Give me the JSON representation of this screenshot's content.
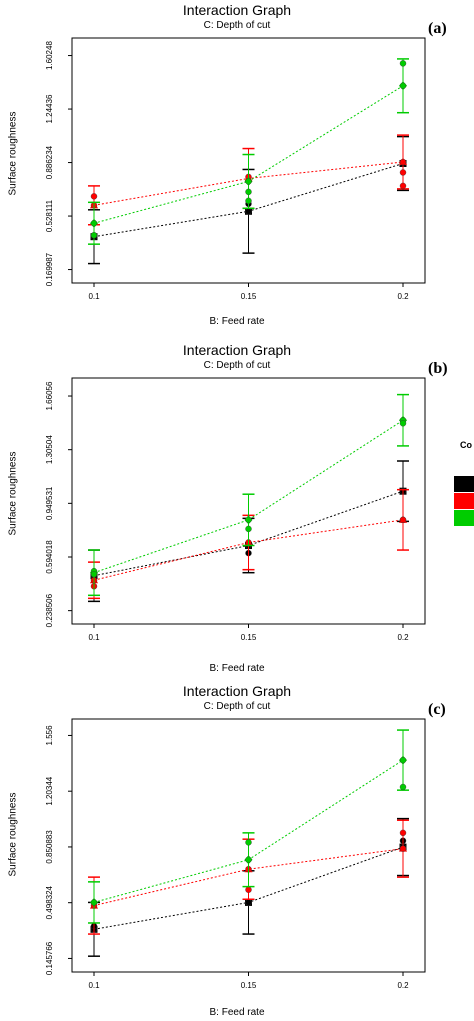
{
  "legend": {
    "title_fragment": "Co",
    "colors": [
      "#000000",
      "#ff0000",
      "#00cc00"
    ]
  },
  "chart_data": [
    {
      "type": "line",
      "title": "Interaction Graph",
      "subtitle": "C: Depth of cut",
      "tag": "(a)",
      "xlabel": "B: Feed rate",
      "ylabel": "Surface roughness",
      "x": [
        0.1,
        0.15,
        0.2
      ],
      "x_tick_labels": [
        "0.1",
        "0.15",
        "0.2"
      ],
      "y_ticks": [
        0.169987,
        0.528111,
        0.886234,
        1.24436,
        1.60248
      ],
      "y_tick_labels": [
        "0.169987",
        "0.528111",
        "0.886234",
        "1.24436",
        "1.60248"
      ],
      "ylim": [
        0.08,
        1.72
      ],
      "series": [
        {
          "color": "#000000",
          "marker": "square",
          "values": [
            0.39,
            0.56,
            0.88
          ],
          "err": [
            0.18,
            0.28,
            0.18
          ],
          "points": [
            [
              0.1,
              0.39
            ],
            [
              0.15,
              0.61
            ],
            [
              0.15,
              0.56
            ],
            [
              0.2,
              0.88
            ]
          ]
        },
        {
          "color": "#ff0000",
          "marker": "triangle",
          "values": [
            0.6,
            0.78,
            0.89
          ],
          "err": [
            0.13,
            0.2,
            0.18
          ],
          "points": [
            [
              0.1,
              0.66
            ],
            [
              0.1,
              0.6
            ],
            [
              0.15,
              0.79
            ],
            [
              0.15,
              0.76
            ],
            [
              0.2,
              0.89
            ],
            [
              0.2,
              0.82
            ],
            [
              0.2,
              0.73
            ]
          ]
        },
        {
          "color": "#00cc00",
          "marker": "diamond",
          "values": [
            0.48,
            0.76,
            1.4
          ],
          "err": [
            0.14,
            0.18,
            0.18
          ],
          "points": [
            [
              0.1,
              0.48
            ],
            [
              0.1,
              0.4
            ],
            [
              0.15,
              0.69
            ],
            [
              0.15,
              0.76
            ],
            [
              0.15,
              0.63
            ],
            [
              0.2,
              1.4
            ],
            [
              0.2,
              1.55
            ]
          ]
        }
      ]
    },
    {
      "type": "line",
      "title": "Interaction Graph",
      "subtitle": "C: Depth of cut",
      "tag": "(b)",
      "xlabel": "B: Feed rate",
      "ylabel": "Surface roughness",
      "x": [
        0.1,
        0.15,
        0.2
      ],
      "x_tick_labels": [
        "0.1",
        "0.15",
        "0.2"
      ],
      "y_ticks": [
        0.238506,
        0.594018,
        0.949531,
        1.30504,
        1.66056
      ],
      "y_tick_labels": [
        "0.238506",
        "0.594018",
        "0.949531",
        "1.30504",
        "1.66056"
      ],
      "ylim": [
        0.15,
        1.78
      ],
      "series": [
        {
          "color": "#000000",
          "marker": "square",
          "values": [
            0.47,
            0.67,
            1.03
          ],
          "err": [
            0.17,
            0.18,
            0.2
          ],
          "points": [
            [
              0.1,
              0.47
            ],
            [
              0.15,
              0.67
            ],
            [
              0.15,
              0.62
            ],
            [
              0.2,
              1.03
            ]
          ]
        },
        {
          "color": "#ff0000",
          "marker": "triangle",
          "values": [
            0.44,
            0.69,
            0.84
          ],
          "err": [
            0.12,
            0.18,
            0.2
          ],
          "points": [
            [
              0.1,
              0.44
            ],
            [
              0.1,
              0.4
            ],
            [
              0.15,
              0.69
            ],
            [
              0.2,
              0.84
            ],
            [
              0.2,
              0.84
            ]
          ]
        },
        {
          "color": "#00cc00",
          "marker": "diamond",
          "values": [
            0.49,
            0.84,
            1.5
          ],
          "err": [
            0.15,
            0.17,
            0.17
          ],
          "points": [
            [
              0.1,
              0.5
            ],
            [
              0.1,
              0.48
            ],
            [
              0.15,
              0.84
            ],
            [
              0.15,
              0.78
            ],
            [
              0.2,
              1.5
            ],
            [
              0.2,
              1.48
            ]
          ]
        }
      ]
    },
    {
      "type": "line",
      "title": "Interaction Graph",
      "subtitle": "C: Depth of cut",
      "tag": "(c)",
      "xlabel": "B: Feed rate",
      "ylabel": "Surface roughness",
      "x": [
        0.1,
        0.15,
        0.2
      ],
      "x_tick_labels": [
        "0.1",
        "0.15",
        "0.2"
      ],
      "y_ticks": [
        0.145766,
        0.498324,
        0.850883,
        1.20344,
        1.556
      ],
      "y_tick_labels": [
        "0.145766",
        "0.498324",
        "0.850883",
        "1.20344",
        "1.556"
      ],
      "ylim": [
        0.06,
        1.66
      ],
      "series": [
        {
          "color": "#000000",
          "marker": "square",
          "values": [
            0.33,
            0.5,
            0.85
          ],
          "err": [
            0.17,
            0.2,
            0.18
          ],
          "points": [
            [
              0.1,
              0.33
            ],
            [
              0.1,
              0.35
            ],
            [
              0.15,
              0.5
            ],
            [
              0.2,
              0.85
            ],
            [
              0.2,
              0.89
            ]
          ]
        },
        {
          "color": "#ff0000",
          "marker": "triangle",
          "values": [
            0.48,
            0.71,
            0.84
          ],
          "err": [
            0.18,
            0.19,
            0.18
          ],
          "points": [
            [
              0.1,
              0.48
            ],
            [
              0.15,
              0.71
            ],
            [
              0.15,
              0.58
            ],
            [
              0.2,
              0.84
            ],
            [
              0.2,
              0.94
            ]
          ]
        },
        {
          "color": "#00cc00",
          "marker": "diamond",
          "values": [
            0.5,
            0.77,
            1.4
          ],
          "err": [
            0.13,
            0.17,
            0.19
          ],
          "points": [
            [
              0.1,
              0.5
            ],
            [
              0.15,
              0.77
            ],
            [
              0.15,
              0.88
            ],
            [
              0.2,
              1.4
            ],
            [
              0.2,
              1.23
            ]
          ]
        }
      ]
    }
  ]
}
